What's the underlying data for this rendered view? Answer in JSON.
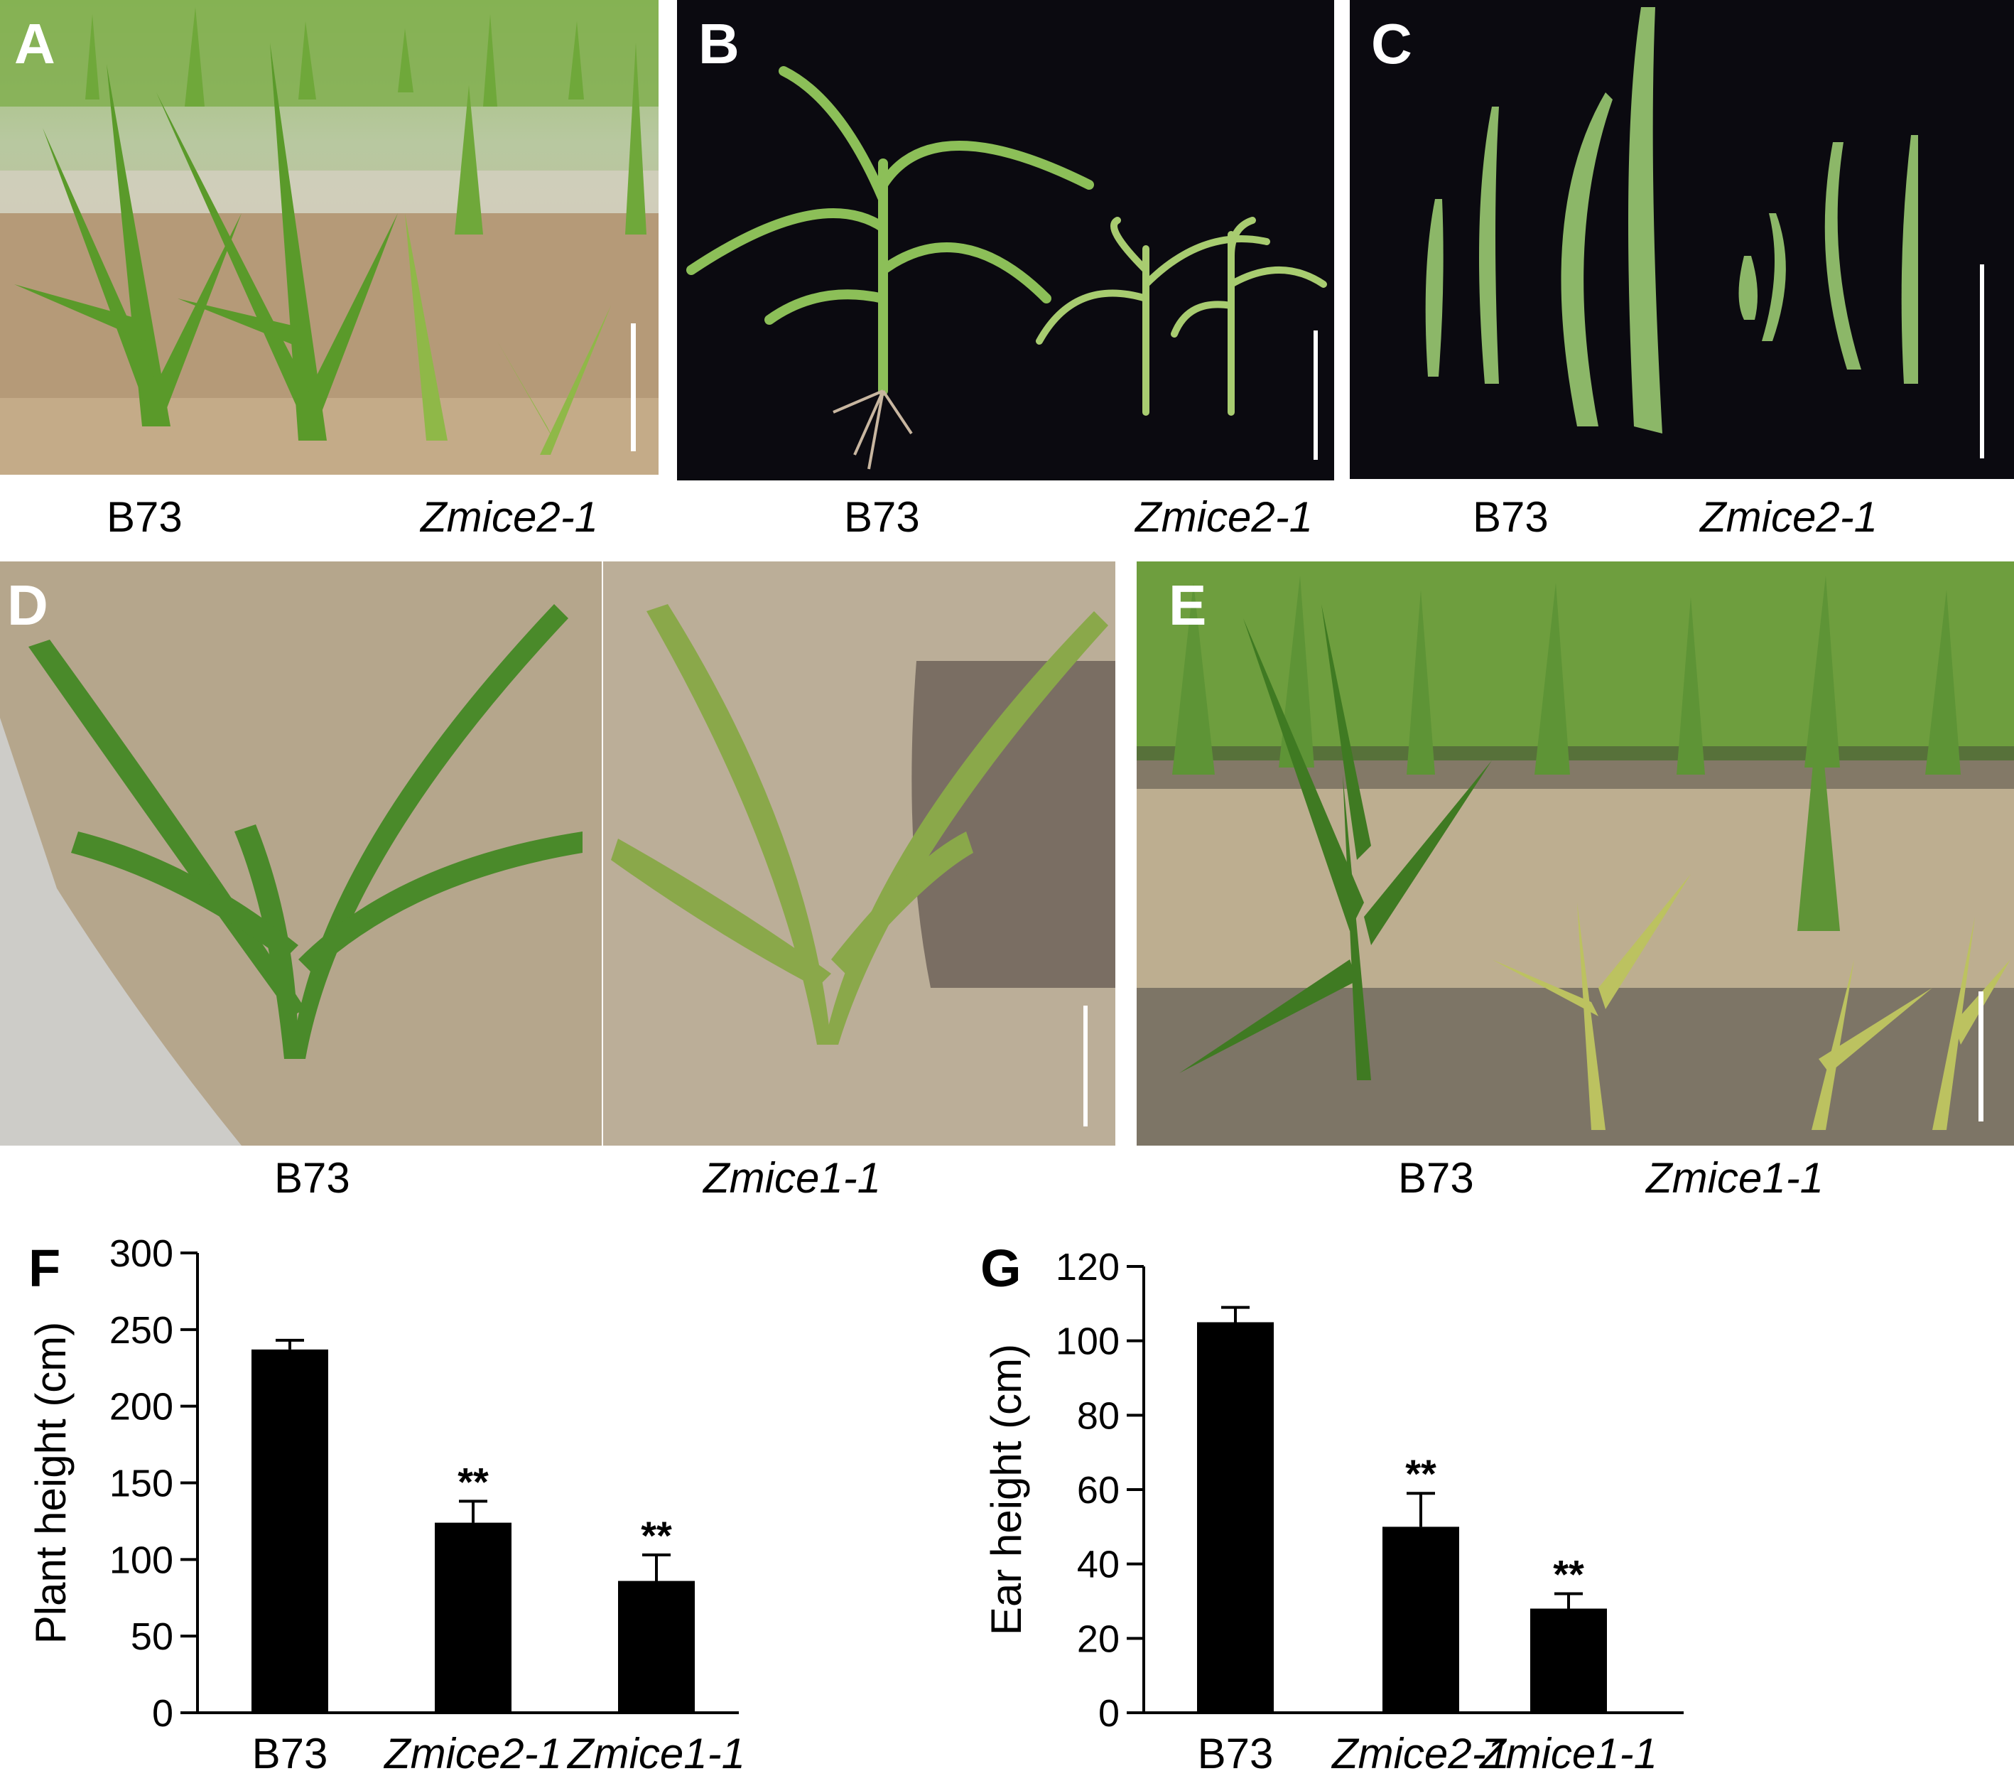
{
  "panels": {
    "A": {
      "letter": "A",
      "labels": [
        "B73",
        "Zmice2-1"
      ]
    },
    "B": {
      "letter": "B",
      "labels": [
        "B73",
        "Zmice2-1"
      ]
    },
    "C": {
      "letter": "C",
      "labels": [
        "B73",
        "Zmice2-1"
      ]
    },
    "D": {
      "letter": "D",
      "labels": [
        "B73",
        "Zmice1-1"
      ]
    },
    "E": {
      "letter": "E",
      "labels": [
        "B73",
        "Zmice1-1"
      ]
    }
  },
  "colors": {
    "bar": "#000000",
    "black_background": "#0b0a10",
    "soil": "#b4a488",
    "leaf_green": "#5c9a2c",
    "leaf_pale": "#b9c86a"
  },
  "chart_data": [
    {
      "panel": "F",
      "type": "bar",
      "categories": [
        "B73",
        "Zmice2-1",
        "Zmice1-1"
      ],
      "values": [
        237,
        124,
        86
      ],
      "errors": [
        6,
        14,
        17
      ],
      "significance": [
        "",
        "**",
        "**"
      ],
      "ylabel": "Plant height (cm)",
      "ylim": [
        0,
        300
      ],
      "yticks": [
        0,
        50,
        100,
        150,
        200,
        250,
        300
      ]
    },
    {
      "panel": "G",
      "type": "bar",
      "categories": [
        "B73",
        "Zmice2-1",
        "Zmice1-1"
      ],
      "values": [
        105,
        50,
        28
      ],
      "errors": [
        4,
        9,
        4
      ],
      "significance": [
        "",
        "**",
        "**"
      ],
      "ylabel": "Ear height (cm)",
      "ylim": [
        0,
        120
      ],
      "yticks": [
        0,
        20,
        40,
        60,
        80,
        100,
        120
      ]
    }
  ],
  "chart_letters": [
    "F",
    "G"
  ]
}
